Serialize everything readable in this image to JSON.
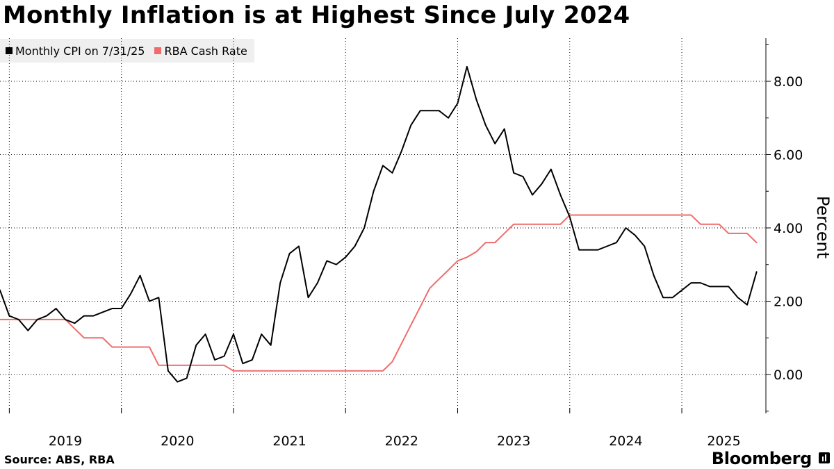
{
  "chart_data": {
    "type": "line",
    "title": "Monthly Inflation is at Highest Since July 2024",
    "ylabel": "Percent",
    "xlabel": "",
    "ylim": [
      -1.0,
      9.2
    ],
    "yticks": [
      0,
      2,
      4,
      6,
      8
    ],
    "ytick_labels": [
      "0.00",
      "2.00",
      "4.00",
      "6.00",
      "8.00"
    ],
    "x_start": 2018.917,
    "x_end": 2025.75,
    "year_ticks": [
      2019,
      2020,
      2021,
      2022,
      2023,
      2024,
      2025,
      2026
    ],
    "year_labels": [
      "2019",
      "2020",
      "2021",
      "2022",
      "2023",
      "2024",
      "2025"
    ],
    "legend_position": "top-left",
    "series": [
      {
        "name": "Monthly CPI on 7/31/25",
        "color": "#000000",
        "step": false,
        "points": [
          [
            2018.917,
            2.3
          ],
          [
            2019.0,
            1.6
          ],
          [
            2019.083,
            1.5
          ],
          [
            2019.167,
            1.2
          ],
          [
            2019.25,
            1.5
          ],
          [
            2019.333,
            1.6
          ],
          [
            2019.417,
            1.8
          ],
          [
            2019.5,
            1.5
          ],
          [
            2019.583,
            1.4
          ],
          [
            2019.667,
            1.6
          ],
          [
            2019.75,
            1.6
          ],
          [
            2019.833,
            1.7
          ],
          [
            2019.917,
            1.8
          ],
          [
            2020.0,
            1.8
          ],
          [
            2020.083,
            2.2
          ],
          [
            2020.167,
            2.7
          ],
          [
            2020.25,
            2.0
          ],
          [
            2020.333,
            2.1
          ],
          [
            2020.417,
            0.1
          ],
          [
            2020.5,
            -0.2
          ],
          [
            2020.583,
            -0.1
          ],
          [
            2020.667,
            0.8
          ],
          [
            2020.75,
            1.1
          ],
          [
            2020.833,
            0.4
          ],
          [
            2020.917,
            0.5
          ],
          [
            2021.0,
            1.1
          ],
          [
            2021.083,
            0.3
          ],
          [
            2021.167,
            0.4
          ],
          [
            2021.25,
            1.1
          ],
          [
            2021.333,
            0.8
          ],
          [
            2021.417,
            2.5
          ],
          [
            2021.5,
            3.3
          ],
          [
            2021.583,
            3.5
          ],
          [
            2021.667,
            2.1
          ],
          [
            2021.75,
            2.5
          ],
          [
            2021.833,
            3.1
          ],
          [
            2021.917,
            3.0
          ],
          [
            2022.0,
            3.2
          ],
          [
            2022.083,
            3.5
          ],
          [
            2022.167,
            4.0
          ],
          [
            2022.25,
            5.0
          ],
          [
            2022.333,
            5.7
          ],
          [
            2022.417,
            5.5
          ],
          [
            2022.5,
            6.1
          ],
          [
            2022.583,
            6.8
          ],
          [
            2022.667,
            7.2
          ],
          [
            2022.75,
            7.2
          ],
          [
            2022.833,
            7.2
          ],
          [
            2022.917,
            7.0
          ],
          [
            2023.0,
            7.4
          ],
          [
            2023.083,
            8.4
          ],
          [
            2023.167,
            7.5
          ],
          [
            2023.25,
            6.8
          ],
          [
            2023.333,
            6.3
          ],
          [
            2023.417,
            6.7
          ],
          [
            2023.5,
            5.5
          ],
          [
            2023.583,
            5.4
          ],
          [
            2023.667,
            4.9
          ],
          [
            2023.75,
            5.2
          ],
          [
            2023.833,
            5.6
          ],
          [
            2023.917,
            4.9
          ],
          [
            2024.0,
            4.3
          ],
          [
            2024.083,
            3.4
          ],
          [
            2024.167,
            3.4
          ],
          [
            2024.25,
            3.4
          ],
          [
            2024.333,
            3.5
          ],
          [
            2024.417,
            3.6
          ],
          [
            2024.5,
            4.0
          ],
          [
            2024.583,
            3.8
          ],
          [
            2024.667,
            3.5
          ],
          [
            2024.75,
            2.7
          ],
          [
            2024.833,
            2.1
          ],
          [
            2024.917,
            2.1
          ],
          [
            2025.0,
            2.3
          ],
          [
            2025.083,
            2.5
          ],
          [
            2025.167,
            2.5
          ],
          [
            2025.25,
            2.4
          ],
          [
            2025.333,
            2.4
          ],
          [
            2025.417,
            2.4
          ],
          [
            2025.5,
            2.1
          ],
          [
            2025.583,
            1.9
          ],
          [
            2025.667,
            2.8
          ]
        ]
      },
      {
        "name": "RBA Cash Rate",
        "color": "#f06b6b",
        "step": true,
        "points": [
          [
            2018.917,
            1.5
          ],
          [
            2019.5,
            1.5
          ],
          [
            2019.583,
            1.25
          ],
          [
            2019.667,
            1.0
          ],
          [
            2019.833,
            1.0
          ],
          [
            2019.917,
            0.75
          ],
          [
            2020.25,
            0.75
          ],
          [
            2020.333,
            0.25
          ],
          [
            2020.917,
            0.25
          ],
          [
            2021.0,
            0.1
          ],
          [
            2022.333,
            0.1
          ],
          [
            2022.417,
            0.35
          ],
          [
            2022.5,
            0.85
          ],
          [
            2022.583,
            1.35
          ],
          [
            2022.667,
            1.85
          ],
          [
            2022.75,
            2.35
          ],
          [
            2022.833,
            2.6
          ],
          [
            2022.917,
            2.85
          ],
          [
            2023.0,
            3.1
          ],
          [
            2023.083,
            3.2
          ],
          [
            2023.167,
            3.35
          ],
          [
            2023.25,
            3.6
          ],
          [
            2023.333,
            3.6
          ],
          [
            2023.417,
            3.85
          ],
          [
            2023.5,
            4.1
          ],
          [
            2023.917,
            4.1
          ],
          [
            2024.0,
            4.35
          ],
          [
            2025.083,
            4.35
          ],
          [
            2025.167,
            4.1
          ],
          [
            2025.333,
            4.1
          ],
          [
            2025.417,
            3.85
          ],
          [
            2025.583,
            3.85
          ],
          [
            2025.667,
            3.6
          ]
        ]
      }
    ]
  },
  "legend": {
    "items": [
      {
        "label": "Monthly CPI on 7/31/25",
        "color": "#000000"
      },
      {
        "label": "RBA Cash Rate",
        "color": "#f06b6b"
      }
    ]
  },
  "footer": {
    "source": "Source: ABS, RBA",
    "brand": "Bloomberg"
  }
}
